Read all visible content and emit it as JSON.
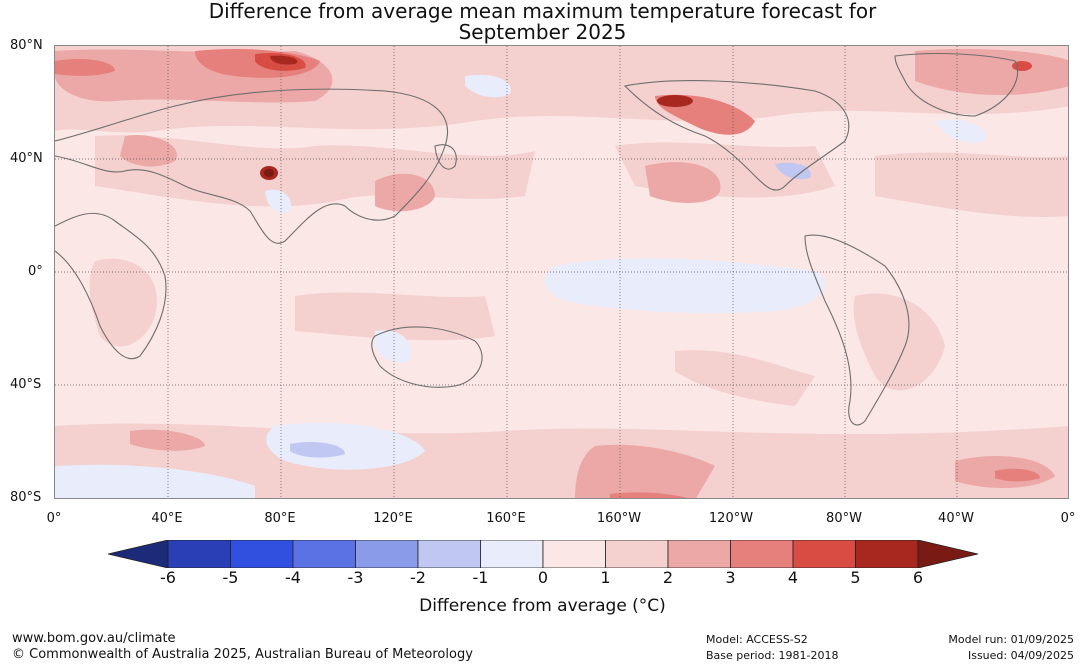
{
  "title_line1": "Difference from average mean maximum temperature forecast for",
  "title_line2": "September 2025",
  "lat_labels": [
    "80°N",
    "40°N",
    "0°",
    "40°S",
    "80°S"
  ],
  "lon_labels": [
    "0°",
    "40°E",
    "80°E",
    "120°E",
    "160°E",
    "160°W",
    "120°W",
    "80°W",
    "40°W",
    "0°"
  ],
  "colorbar": {
    "ticks": [
      "-6",
      "-5",
      "-4",
      "-3",
      "-2",
      "-1",
      "0",
      "1",
      "2",
      "3",
      "4",
      "5",
      "6"
    ],
    "colors": [
      "#1c2a7a",
      "#2a3fb5",
      "#3150e0",
      "#5a72e3",
      "#8a9bea",
      "#c0c8f2",
      "#e8ecfb",
      "#fbe7e6",
      "#f4d0cf",
      "#eba8a6",
      "#e5807c",
      "#d84c44",
      "#a8281f",
      "#7a1a14"
    ],
    "label": "Difference from average (°C)"
  },
  "footer": {
    "website": "www.bom.gov.au/climate",
    "copyright": "© Commonwealth of Australia 2025, Australian Bureau of Meteorology",
    "model": "Model: ACCESS-S2",
    "base_period": "Base period: 1981-2018",
    "model_run": "Model run: 01/09/2025",
    "issued": "Issued: 04/09/2025"
  }
}
